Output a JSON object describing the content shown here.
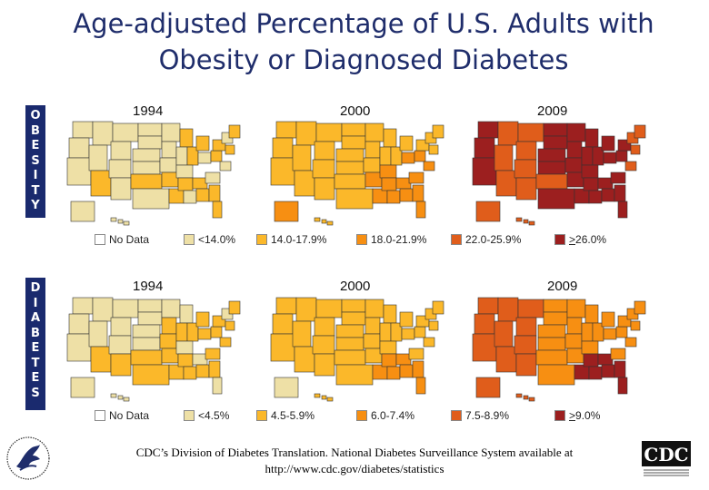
{
  "title_line1": "Age-adjusted Percentage of U.S. Adults with",
  "title_line2": "Obesity or Diagnosed Diabetes",
  "obesity": {
    "side_label": [
      "O",
      "B",
      "E",
      "S",
      "I",
      "T",
      "Y"
    ],
    "years": [
      "1994",
      "2000",
      "2009"
    ],
    "legend": [
      {
        "label": "No Data",
        "color": "#ffffff"
      },
      {
        "label": "<14.0%",
        "color": "#eee0a6"
      },
      {
        "label": "14.0-17.9%",
        "color": "#fbb82a"
      },
      {
        "label": "18.0-21.9%",
        "color": "#f78f12"
      },
      {
        "label": "22.0-25.9%",
        "color": "#e05d1b"
      },
      {
        "label_prefix": ">",
        "label": "26.0%",
        "color": "#9c1f1f"
      }
    ]
  },
  "diabetes": {
    "side_label": [
      "D",
      "I",
      "A",
      "B",
      "E",
      "T",
      "E",
      "S"
    ],
    "years": [
      "1994",
      "2000",
      "2009"
    ],
    "legend": [
      {
        "label": "No Data",
        "color": "#ffffff"
      },
      {
        "label": "<4.5%",
        "color": "#eee0a6"
      },
      {
        "label": "4.5-5.9%",
        "color": "#fbb82a"
      },
      {
        "label": "6.0-7.4%",
        "color": "#f78f12"
      },
      {
        "label": "7.5-8.9%",
        "color": "#e05d1b"
      },
      {
        "label_prefix": ">",
        "label": "9.0%",
        "color": "#9c1f1f"
      }
    ]
  },
  "footer_line1": "CDC’s Division of Diabetes Translation. National Diabetes Surveillance System available at",
  "footer_line2": "http://www.cdc.gov/diabetes/statistics",
  "logo_cdc_text": "CDC"
}
